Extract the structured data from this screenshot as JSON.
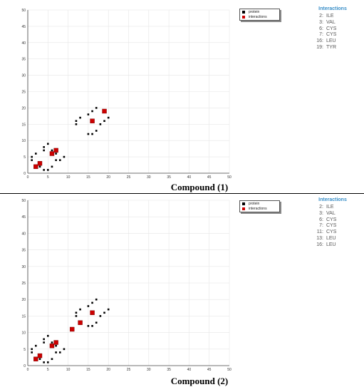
{
  "chart_data": [
    {
      "type": "scatter",
      "caption": "Compound (1)",
      "xlim": [
        0,
        50
      ],
      "ylim": [
        0,
        50
      ],
      "xticks": [
        0,
        5,
        10,
        15,
        20,
        25,
        30,
        35,
        40,
        45,
        50
      ],
      "yticks": [
        0,
        5,
        10,
        15,
        20,
        25,
        30,
        35,
        40,
        45,
        50
      ],
      "grid": true,
      "legend": {
        "placement": "top-right",
        "entries": [
          "protein",
          "interactions"
        ]
      },
      "series": [
        {
          "name": "protein",
          "color": "#000000",
          "points": [
            [
              1,
              4
            ],
            [
              1,
              5
            ],
            [
              2,
              6
            ],
            [
              3,
              2
            ],
            [
              4,
              7
            ],
            [
              4,
              8
            ],
            [
              4,
              1
            ],
            [
              5,
              9
            ],
            [
              5,
              1
            ],
            [
              6,
              2
            ],
            [
              6,
              7
            ],
            [
              7,
              6
            ],
            [
              7,
              4
            ],
            [
              8,
              4
            ],
            [
              9,
              5
            ],
            [
              12,
              16
            ],
            [
              12,
              15
            ],
            [
              13,
              17
            ],
            [
              15,
              12
            ],
            [
              15,
              18
            ],
            [
              16,
              12
            ],
            [
              16,
              19
            ],
            [
              17,
              13
            ],
            [
              17,
              20
            ],
            [
              18,
              15
            ],
            [
              19,
              16
            ],
            [
              20,
              17
            ]
          ]
        },
        {
          "name": "interactions",
          "color": "#cc0000",
          "points": [
            [
              2,
              2
            ],
            [
              3,
              3
            ],
            [
              6,
              6
            ],
            [
              7,
              7
            ],
            [
              16,
              16
            ],
            [
              19,
              19
            ]
          ]
        }
      ],
      "interactions_panel": {
        "title": "Interactions",
        "items": [
          {
            "num": "2:",
            "res": "ILE"
          },
          {
            "num": "3:",
            "res": "VAL"
          },
          {
            "num": "6:",
            "res": "CYS"
          },
          {
            "num": "7:",
            "res": "CYS"
          },
          {
            "num": "16:",
            "res": "LEU"
          },
          {
            "num": "19:",
            "res": "TYR"
          }
        ]
      }
    },
    {
      "type": "scatter",
      "caption": "Compound (2)",
      "xlim": [
        0,
        50
      ],
      "ylim": [
        0,
        50
      ],
      "xticks": [
        0,
        5,
        10,
        15,
        20,
        25,
        30,
        35,
        40,
        45,
        50
      ],
      "yticks": [
        0,
        5,
        10,
        15,
        20,
        25,
        30,
        35,
        40,
        45,
        50
      ],
      "grid": true,
      "legend": {
        "placement": "top-right",
        "entries": [
          "protein",
          "interactions"
        ]
      },
      "series": [
        {
          "name": "protein",
          "color": "#000000",
          "points": [
            [
              1,
              4
            ],
            [
              1,
              5
            ],
            [
              2,
              6
            ],
            [
              3,
              2
            ],
            [
              4,
              7
            ],
            [
              4,
              8
            ],
            [
              4,
              1
            ],
            [
              5,
              9
            ],
            [
              5,
              1
            ],
            [
              6,
              2
            ],
            [
              6,
              7
            ],
            [
              7,
              6
            ],
            [
              7,
              4
            ],
            [
              8,
              4
            ],
            [
              9,
              5
            ],
            [
              12,
              16
            ],
            [
              12,
              15
            ],
            [
              13,
              17
            ],
            [
              15,
              12
            ],
            [
              15,
              18
            ],
            [
              16,
              12
            ],
            [
              16,
              19
            ],
            [
              17,
              13
            ],
            [
              17,
              20
            ],
            [
              18,
              15
            ],
            [
              19,
              16
            ],
            [
              20,
              17
            ]
          ]
        },
        {
          "name": "interactions",
          "color": "#cc0000",
          "points": [
            [
              2,
              2
            ],
            [
              3,
              3
            ],
            [
              6,
              6
            ],
            [
              7,
              7
            ],
            [
              11,
              11
            ],
            [
              13,
              13
            ],
            [
              16,
              16
            ]
          ]
        }
      ],
      "interactions_panel": {
        "title": "Interactions",
        "items": [
          {
            "num": "2:",
            "res": "ILE"
          },
          {
            "num": "3:",
            "res": "VAL"
          },
          {
            "num": "6:",
            "res": "CYS"
          },
          {
            "num": "7:",
            "res": "CYS"
          },
          {
            "num": "11:",
            "res": "CYS"
          },
          {
            "num": "13:",
            "res": "LEU"
          },
          {
            "num": "16:",
            "res": "LEU"
          }
        ]
      }
    }
  ]
}
